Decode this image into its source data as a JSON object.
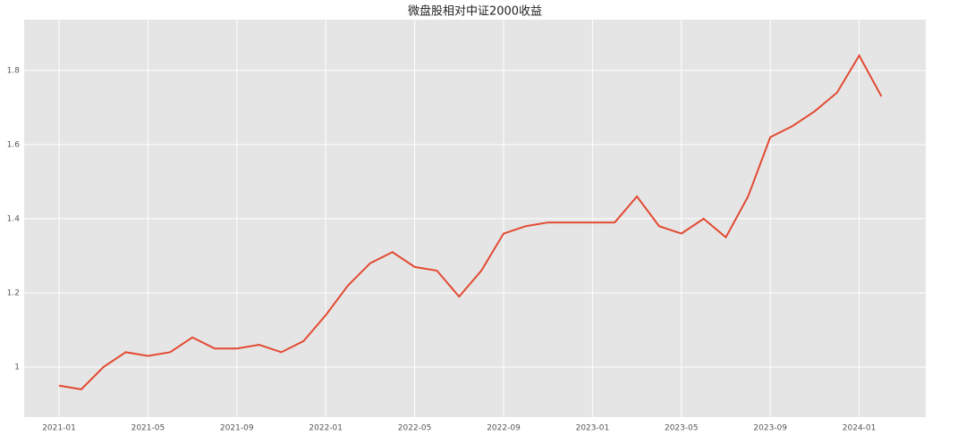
{
  "chart_data": {
    "type": "line",
    "title": "微盘股相对中证2000收益",
    "x": [
      "2021-01",
      "2021-02",
      "2021-03",
      "2021-04",
      "2021-05",
      "2021-06",
      "2021-07",
      "2021-08",
      "2021-09",
      "2021-10",
      "2021-11",
      "2021-12",
      "2022-01",
      "2022-02",
      "2022-03",
      "2022-04",
      "2022-05",
      "2022-06",
      "2022-07",
      "2022-08",
      "2022-09",
      "2022-10",
      "2022-11",
      "2022-12",
      "2023-01",
      "2023-02",
      "2023-03",
      "2023-04",
      "2023-05",
      "2023-06",
      "2023-07",
      "2023-08",
      "2023-09",
      "2023-10",
      "2023-11",
      "2023-12",
      "2024-01",
      "2024-02"
    ],
    "series": [
      {
        "name": "微盘股相对中证2000收益",
        "color": "#e24a33",
        "values": [
          0.95,
          0.94,
          1.0,
          1.04,
          1.03,
          1.04,
          1.08,
          1.05,
          1.05,
          1.06,
          1.04,
          1.07,
          1.14,
          1.22,
          1.28,
          1.31,
          1.27,
          1.26,
          1.19,
          1.26,
          1.36,
          1.38,
          1.39,
          1.39,
          1.39,
          1.39,
          1.46,
          1.38,
          1.36,
          1.4,
          1.35,
          1.46,
          1.62,
          1.65,
          1.69,
          1.74,
          1.84,
          1.73
        ]
      }
    ],
    "xticks": [
      "2021-01",
      "2021-05",
      "2021-09",
      "2022-01",
      "2022-05",
      "2022-09",
      "2023-01",
      "2023-05",
      "2023-09",
      "2024-01"
    ],
    "ylim": [
      0.865,
      1.937
    ],
    "yticks": [
      1.0,
      1.2,
      1.4,
      1.6,
      1.8
    ],
    "grid": true
  }
}
